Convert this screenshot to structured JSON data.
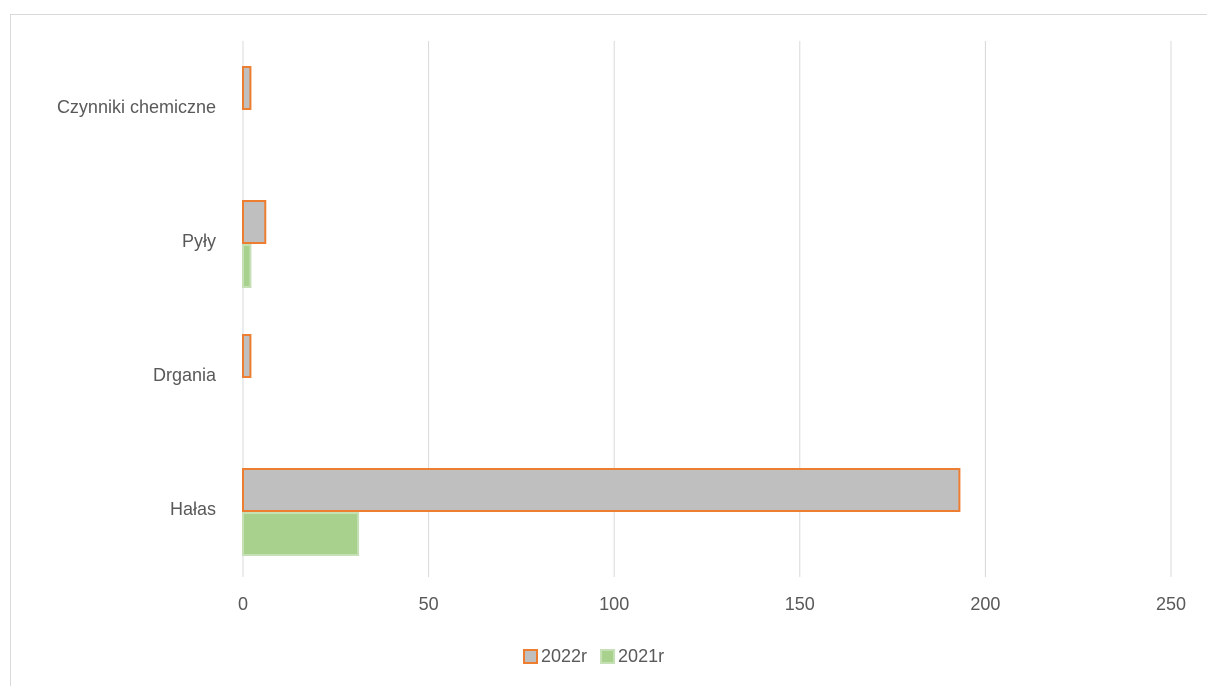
{
  "chart_data": {
    "type": "barh",
    "categories": [
      "Hałas",
      "Drgania",
      "Pyły",
      "Czynniki chemiczne"
    ],
    "series": [
      {
        "name": "2022r",
        "color": "#bfbfbf",
        "edgecolor": "#ed7d31",
        "values": [
          193,
          2,
          6,
          2
        ]
      },
      {
        "name": "2021r",
        "color": "#a9d18e",
        "edgecolor": "#c5e0b4",
        "values": [
          31,
          0,
          2,
          0
        ]
      }
    ],
    "xlim": [
      0,
      250
    ],
    "xticks": [
      0,
      50,
      100,
      150,
      200,
      250
    ],
    "grid": true,
    "legend": "bottom"
  }
}
